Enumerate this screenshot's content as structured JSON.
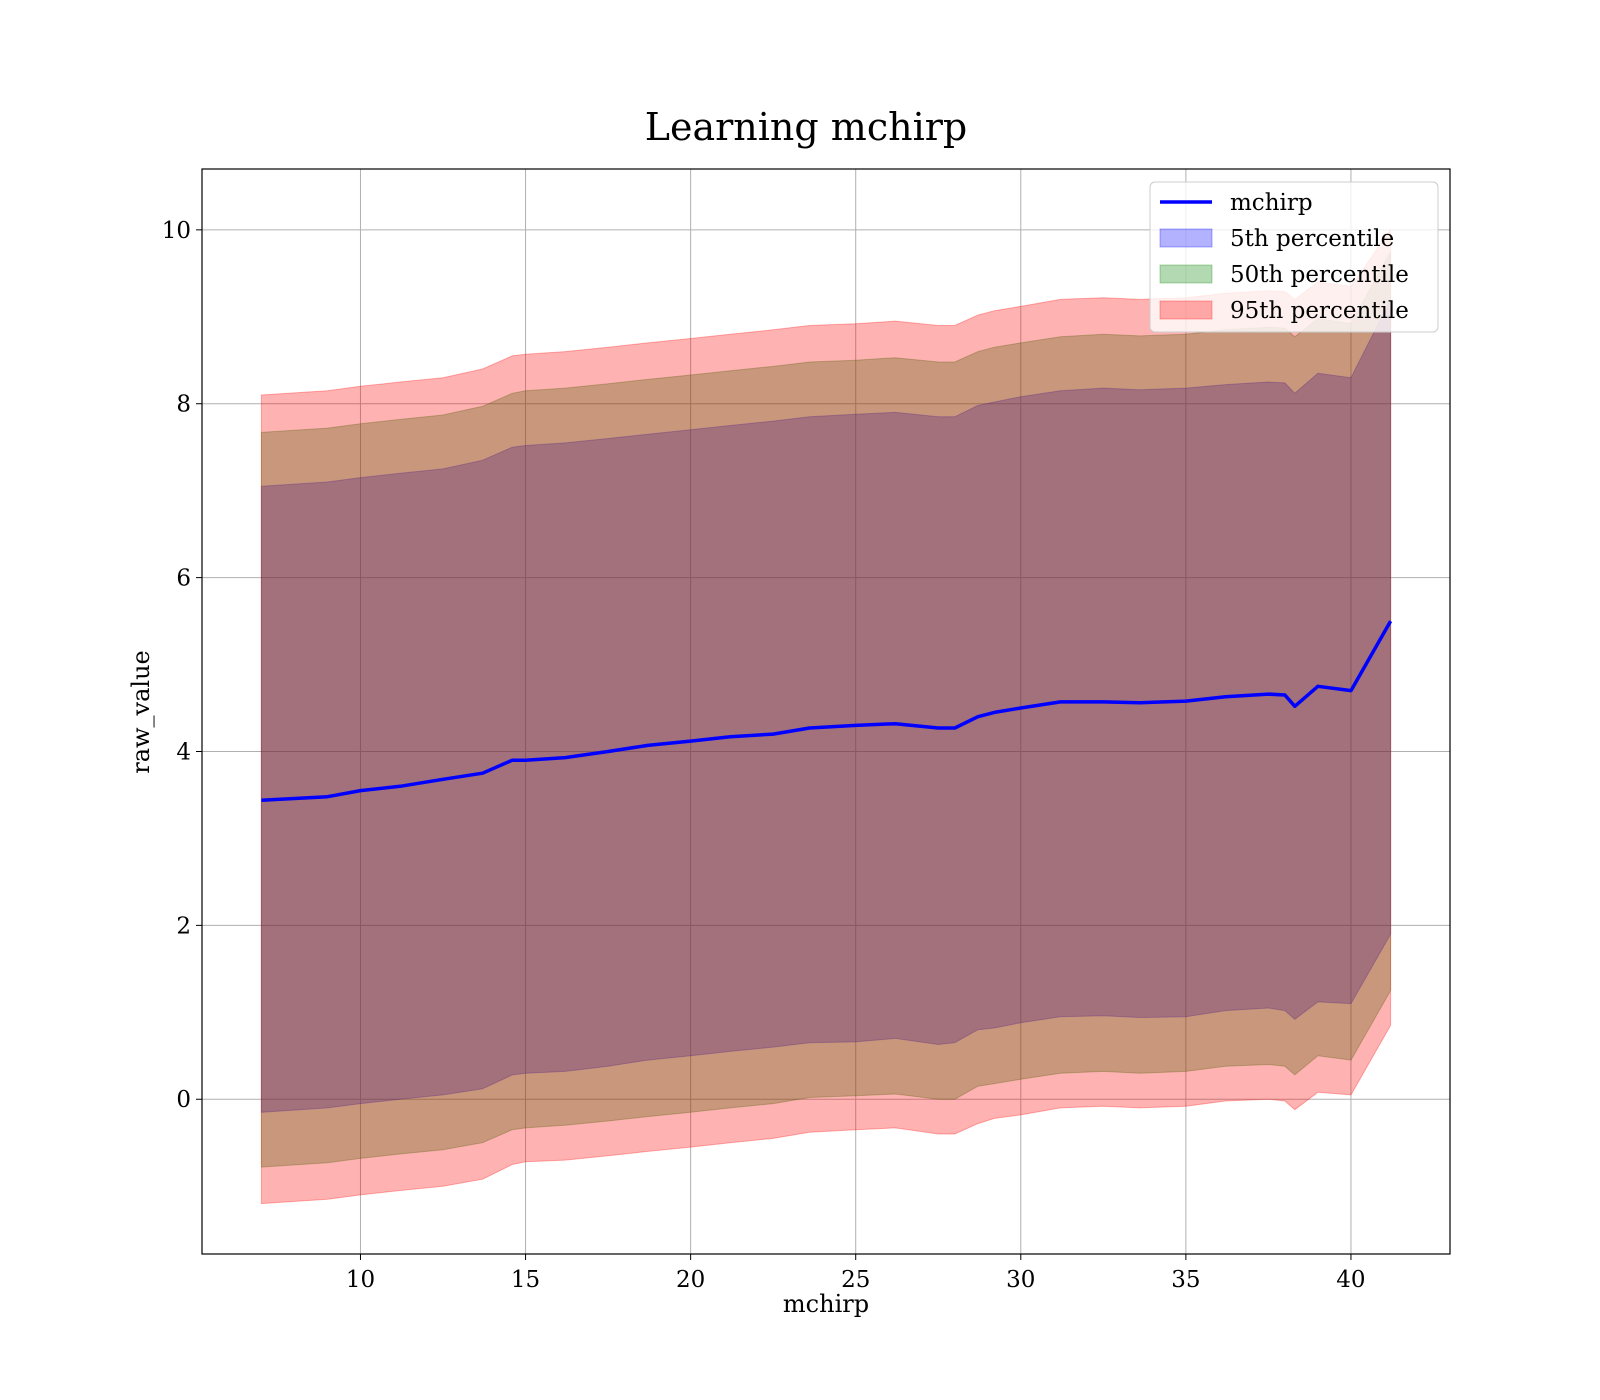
{
  "chart_data": {
    "type": "line",
    "title": "Learning mchirp",
    "xlabel": "mchirp",
    "ylabel": "raw_value",
    "xlim": [
      5.2,
      43.0
    ],
    "ylim": [
      -1.78,
      10.7
    ],
    "xticks": [
      10,
      15,
      20,
      25,
      30,
      35,
      40
    ],
    "yticks": [
      0,
      2,
      4,
      6,
      8,
      10
    ],
    "grid": true,
    "legend_position": "top-right",
    "x": [
      7.0,
      9.0,
      10.0,
      11.2,
      12.5,
      13.7,
      14.6,
      15.0,
      16.2,
      17.5,
      18.7,
      20.0,
      21.2,
      22.5,
      23.6,
      25.0,
      26.2,
      27.5,
      28.0,
      28.7,
      29.2,
      30.0,
      31.2,
      32.5,
      33.6,
      35.0,
      36.2,
      37.5,
      38.0,
      38.3,
      39.0,
      40.0,
      41.2
    ],
    "series": [
      {
        "name": "mchirp",
        "kind": "line",
        "color": "#0000ff",
        "values": [
          3.44,
          3.48,
          3.55,
          3.6,
          3.68,
          3.75,
          3.9,
          3.9,
          3.93,
          4.0,
          4.07,
          4.12,
          4.17,
          4.2,
          4.27,
          4.3,
          4.32,
          4.27,
          4.27,
          4.4,
          4.45,
          4.5,
          4.57,
          4.57,
          4.56,
          4.58,
          4.63,
          4.66,
          4.65,
          4.52,
          4.75,
          4.7,
          5.5
        ]
      },
      {
        "name": "5th percentile",
        "kind": "band",
        "color": "#0000ff",
        "lower": [
          -0.15,
          -0.1,
          -0.05,
          0.0,
          0.05,
          0.12,
          0.28,
          0.3,
          0.32,
          0.38,
          0.45,
          0.5,
          0.55,
          0.6,
          0.65,
          0.66,
          0.7,
          0.63,
          0.65,
          0.8,
          0.82,
          0.88,
          0.95,
          0.96,
          0.94,
          0.95,
          1.02,
          1.05,
          1.02,
          0.92,
          1.12,
          1.1,
          1.9
        ],
        "upper": [
          7.05,
          7.1,
          7.15,
          7.2,
          7.25,
          7.35,
          7.5,
          7.52,
          7.55,
          7.6,
          7.65,
          7.7,
          7.75,
          7.8,
          7.85,
          7.88,
          7.9,
          7.85,
          7.85,
          7.98,
          8.02,
          8.08,
          8.15,
          8.18,
          8.16,
          8.18,
          8.22,
          8.25,
          8.24,
          8.12,
          8.35,
          8.3,
          9.2
        ]
      },
      {
        "name": "50th percentile",
        "kind": "band",
        "color": "#008000",
        "lower": [
          -0.78,
          -0.73,
          -0.68,
          -0.63,
          -0.58,
          -0.5,
          -0.35,
          -0.33,
          -0.3,
          -0.25,
          -0.2,
          -0.15,
          -0.1,
          -0.05,
          0.02,
          0.04,
          0.06,
          0.0,
          0.0,
          0.15,
          0.18,
          0.23,
          0.3,
          0.32,
          0.3,
          0.32,
          0.38,
          0.4,
          0.38,
          0.28,
          0.5,
          0.45,
          1.25
        ],
        "upper": [
          7.67,
          7.72,
          7.77,
          7.82,
          7.87,
          7.97,
          8.12,
          8.15,
          8.18,
          8.23,
          8.28,
          8.33,
          8.38,
          8.43,
          8.48,
          8.5,
          8.53,
          8.48,
          8.48,
          8.6,
          8.65,
          8.7,
          8.77,
          8.8,
          8.78,
          8.8,
          8.85,
          8.88,
          8.87,
          8.77,
          8.98,
          8.92,
          9.75
        ]
      },
      {
        "name": "95th percentile",
        "kind": "band",
        "color": "#ff0000",
        "lower": [
          -1.2,
          -1.15,
          -1.1,
          -1.05,
          -1.0,
          -0.92,
          -0.75,
          -0.72,
          -0.7,
          -0.65,
          -0.6,
          -0.55,
          -0.5,
          -0.45,
          -0.38,
          -0.35,
          -0.33,
          -0.4,
          -0.4,
          -0.28,
          -0.22,
          -0.18,
          -0.1,
          -0.08,
          -0.1,
          -0.08,
          -0.02,
          0.0,
          -0.02,
          -0.12,
          0.08,
          0.05,
          0.85
        ],
        "upper": [
          8.1,
          8.15,
          8.2,
          8.25,
          8.3,
          8.4,
          8.55,
          8.57,
          8.6,
          8.65,
          8.7,
          8.75,
          8.8,
          8.85,
          8.9,
          8.92,
          8.95,
          8.9,
          8.9,
          9.02,
          9.07,
          9.12,
          9.2,
          9.22,
          9.2,
          9.22,
          9.27,
          9.3,
          9.29,
          9.2,
          9.4,
          9.35,
          10.0
        ]
      }
    ]
  }
}
